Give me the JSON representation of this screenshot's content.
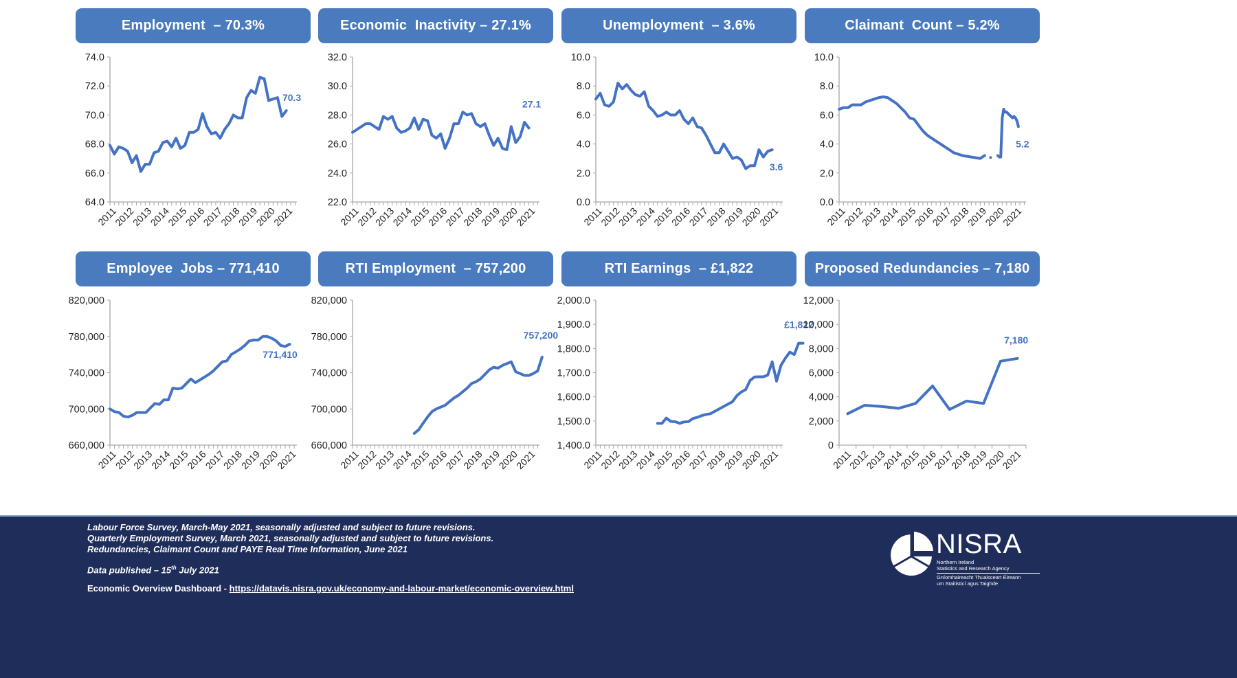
{
  "colors": {
    "header_bg": "#4a7bbf",
    "line": "#4472c4",
    "footer_bg": "#1f2d5a",
    "axis": "#a6a6a6"
  },
  "panels": [
    {
      "title": "Employment  – 70.3%"
    },
    {
      "title": "Economic  Inactivity – 27.1%"
    },
    {
      "title": "Unemployment  – 3.6%"
    },
    {
      "title": "Claimant  Count – 5.2%"
    },
    {
      "title": "Employee  Jobs – 771,410"
    },
    {
      "title": "RTI Employment  – 757,200"
    },
    {
      "title": "RTI Earnings  – £1,822"
    },
    {
      "title": "Proposed Redundancies – 7,180"
    }
  ],
  "chart_data": [
    {
      "type": "line",
      "title": "Employment – 70.3%",
      "unit": "%",
      "ylim": [
        64,
        74
      ],
      "yticks": [
        "64.0",
        "66.0",
        "68.0",
        "70.0",
        "72.0",
        "74.0"
      ],
      "ytick_values": [
        64,
        66,
        68,
        70,
        72,
        74
      ],
      "xticks": [
        "2011",
        "2012",
        "2013",
        "2014",
        "2015",
        "2016",
        "2017",
        "2018",
        "2019",
        "2020",
        "2021"
      ],
      "x_range": [
        2011.0,
        2021.6
      ],
      "end_label": "70.3",
      "series": [
        {
          "name": "Employment rate",
          "x_start": 2011.0,
          "x_step": 0.25,
          "values": [
            67.9,
            67.3,
            67.8,
            67.7,
            67.5,
            66.7,
            67.2,
            66.1,
            66.6,
            66.6,
            67.4,
            67.5,
            68.1,
            68.2,
            67.8,
            68.4,
            67.7,
            67.9,
            68.8,
            68.8,
            69.0,
            70.1,
            69.2,
            68.7,
            68.8,
            68.4,
            69.0,
            69.4,
            70.0,
            69.8,
            69.8,
            71.2,
            71.7,
            71.5,
            72.6,
            72.5,
            71.0,
            71.1,
            71.2,
            69.9,
            70.3
          ]
        }
      ]
    },
    {
      "type": "line",
      "title": "Economic Inactivity – 27.1%",
      "unit": "%",
      "ylim": [
        22,
        32
      ],
      "yticks": [
        "22.0",
        "24.0",
        "26.0",
        "28.0",
        "30.0",
        "32.0"
      ],
      "ytick_values": [
        22,
        24,
        26,
        28,
        30,
        32
      ],
      "xticks": [
        "2011",
        "2012",
        "2013",
        "2014",
        "2015",
        "2016",
        "2017",
        "2018",
        "2019",
        "2020",
        "2021"
      ],
      "x_range": [
        2011.0,
        2021.6
      ],
      "end_label": "27.1",
      "series": [
        {
          "name": "Economic inactivity rate",
          "x_start": 2011.0,
          "x_step": 0.25,
          "values": [
            26.8,
            27.0,
            27.2,
            27.4,
            27.4,
            27.2,
            27.0,
            27.9,
            27.7,
            27.9,
            27.1,
            26.8,
            26.9,
            27.1,
            27.8,
            27.0,
            27.7,
            27.6,
            26.6,
            26.4,
            26.7,
            25.7,
            26.4,
            27.4,
            27.4,
            28.2,
            28.0,
            28.1,
            27.4,
            27.2,
            27.4,
            26.6,
            25.9,
            26.4,
            25.7,
            25.6,
            27.2,
            26.1,
            26.5,
            27.5,
            27.1
          ]
        }
      ]
    },
    {
      "type": "line",
      "title": "Unemployment – 3.6%",
      "unit": "%",
      "ylim": [
        0,
        10
      ],
      "yticks": [
        "0.0",
        "2.0",
        "4.0",
        "6.0",
        "8.0",
        "10.0"
      ],
      "ytick_values": [
        0,
        2,
        4,
        6,
        8,
        10
      ],
      "xticks": [
        "2011",
        "2012",
        "2013",
        "2014",
        "2015",
        "2016",
        "2017",
        "2018",
        "2019",
        "2020",
        "2021"
      ],
      "x_range": [
        2011.0,
        2021.6
      ],
      "end_label": "3.6",
      "series": [
        {
          "name": "Unemployment rate",
          "x_start": 2011.0,
          "x_step": 0.25,
          "values": [
            7.1,
            7.5,
            6.7,
            6.6,
            6.9,
            8.2,
            7.8,
            8.1,
            7.7,
            7.4,
            7.3,
            7.6,
            6.6,
            6.3,
            5.9,
            6.0,
            6.2,
            6.0,
            6.0,
            6.3,
            5.7,
            5.4,
            5.8,
            5.2,
            5.1,
            4.6,
            4.0,
            3.4,
            3.4,
            4.0,
            3.5,
            3.0,
            3.1,
            2.9,
            2.3,
            2.5,
            2.5,
            3.6,
            3.1,
            3.5,
            3.6
          ]
        }
      ]
    },
    {
      "type": "line",
      "title": "Claimant Count – 5.2%",
      "unit": "%",
      "ylim": [
        0,
        10
      ],
      "yticks": [
        "0.0",
        "2.0",
        "4.0",
        "6.0",
        "8.0",
        "10.0"
      ],
      "ytick_values": [
        0,
        2,
        4,
        6,
        8,
        10
      ],
      "xticks": [
        "2011",
        "2012",
        "2013",
        "2014",
        "2015",
        "2016",
        "2017",
        "2018",
        "2019",
        "2020",
        "2021"
      ],
      "x_range": [
        2011.0,
        2021.6
      ],
      "end_label": "5.2",
      "series": [
        {
          "name": "Claimant count rate",
          "style": "solid",
          "x_start": 2011.0,
          "x_step": 0.25,
          "values": [
            6.4,
            6.5,
            6.5,
            6.7,
            6.7,
            6.7,
            6.9,
            7.0,
            7.1,
            7.2,
            7.25,
            7.2,
            7.0,
            6.8,
            6.5,
            6.2,
            5.8,
            5.7,
            5.3,
            4.9,
            4.6,
            4.4,
            4.2,
            4.0,
            3.8,
            3.6,
            3.4,
            3.3,
            3.2,
            3.15,
            3.1,
            3.05,
            3.0,
            3.2
          ]
        },
        {
          "name": "Claimant count rate (gap)",
          "style": "dotted",
          "x_start": 2019.25,
          "x_step": 0.25,
          "values": [
            3.2,
            3.1,
            3.0
          ]
        },
        {
          "name": "Claimant count rate (2020-21)",
          "style": "solid",
          "x_start": 2020.0,
          "x_step": 0.0833,
          "values": [
            3.2,
            3.1,
            3.1,
            5.8,
            6.4,
            6.2,
            6.2,
            6.1,
            6.0,
            5.9,
            5.8,
            5.9,
            5.8,
            5.6,
            5.2
          ]
        }
      ]
    },
    {
      "type": "line",
      "title": "Employee Jobs – 771,410",
      "unit": "jobs",
      "ylim": [
        660000,
        820000
      ],
      "yticks": [
        "660,000",
        "700,000",
        "740,000",
        "780,000",
        "820,000"
      ],
      "ytick_values": [
        660000,
        700000,
        740000,
        780000,
        820000
      ],
      "xticks": [
        "2011",
        "2012",
        "2013",
        "2014",
        "2015",
        "2016",
        "2017",
        "2018",
        "2019",
        "2020",
        "2021"
      ],
      "x_range": [
        2011.0,
        2021.4
      ],
      "end_label": "771,410",
      "series": [
        {
          "name": "Employee jobs",
          "x_start": 2011.0,
          "x_step": 0.25,
          "values": [
            700000,
            697000,
            696000,
            692000,
            691000,
            693000,
            696000,
            696000,
            696000,
            701000,
            706000,
            705000,
            710000,
            710000,
            723000,
            722000,
            723000,
            728000,
            733000,
            729000,
            732000,
            735000,
            738000,
            742000,
            747000,
            752000,
            753000,
            760000,
            763000,
            766000,
            770000,
            775000,
            776000,
            776000,
            780000,
            780000,
            778000,
            775000,
            770000,
            769000,
            771410
          ]
        }
      ]
    },
    {
      "type": "line",
      "title": "RTI Employment – 757,200",
      "unit": "employees",
      "ylim": [
        660000,
        820000
      ],
      "yticks": [
        "660,000",
        "700,000",
        "740,000",
        "780,000",
        "820,000"
      ],
      "ytick_values": [
        660000,
        700000,
        740000,
        780000,
        820000
      ],
      "xticks": [
        "2011",
        "2012",
        "2013",
        "2014",
        "2015",
        "2016",
        "2017",
        "2018",
        "2019",
        "2020",
        "2021"
      ],
      "x_range": [
        2011.0,
        2021.6
      ],
      "end_label": "757,200",
      "series": [
        {
          "name": "RTI payrolled employees",
          "x_start": 2014.5,
          "x_step": 0.25,
          "values": [
            673000,
            677000,
            684000,
            691000,
            697000,
            700000,
            702000,
            704000,
            708000,
            712000,
            715000,
            719000,
            723000,
            728000,
            730000,
            733000,
            738000,
            743000,
            746000,
            745000,
            748000,
            750000,
            752000,
            741000,
            739000,
            737000,
            737000,
            739000,
            742000,
            757200
          ]
        }
      ]
    },
    {
      "type": "line",
      "title": "RTI Earnings – £1,822",
      "unit": "£ median monthly pay",
      "ylim": [
        1400,
        2000
      ],
      "yticks": [
        "1,400.0",
        "1,500.0",
        "1,600.0",
        "1,700.0",
        "1,800.0",
        "2,000.0",
        "1,900.0"
      ],
      "ytick_values": [
        1400,
        1500,
        1600,
        1700,
        1800,
        2000,
        1900
      ],
      "xticks": [
        "2011",
        "2012",
        "2013",
        "2014",
        "2015",
        "2016",
        "2017",
        "2018",
        "2019",
        "2020",
        "2021"
      ],
      "x_range": [
        2011.0,
        2021.6
      ],
      "end_label": "£1,822",
      "series": [
        {
          "name": "RTI median monthly earnings",
          "x_start": 2014.5,
          "x_step": 0.25,
          "values": [
            1490,
            1490,
            1512,
            1498,
            1497,
            1490,
            1496,
            1497,
            1510,
            1515,
            1522,
            1527,
            1530,
            1540,
            1550,
            1560,
            1570,
            1580,
            1605,
            1620,
            1630,
            1668,
            1682,
            1683,
            1683,
            1690,
            1745,
            1665,
            1730,
            1760,
            1785,
            1775,
            1822,
            1822
          ]
        }
      ]
    },
    {
      "type": "line",
      "title": "Proposed Redundancies – 7,180",
      "unit": "redundancies",
      "ylim": [
        0,
        12000
      ],
      "yticks": [
        "0",
        "2,000",
        "4,000",
        "6,000",
        "8,000",
        "10,000",
        "12,000"
      ],
      "ytick_values": [
        0,
        2000,
        4000,
        6000,
        8000,
        10000,
        12000
      ],
      "xticks": [
        "2011",
        "2012",
        "2013",
        "2014",
        "2015",
        "2016",
        "2017",
        "2018",
        "2019",
        "2020",
        "2021"
      ],
      "x_range": [
        2011.0,
        2022.0
      ],
      "annual": true,
      "end_label": "7,180",
      "series": [
        {
          "name": "Proposed redundancies",
          "x_start": 2011.5,
          "x_step": 1,
          "values": [
            2600,
            3300,
            3200,
            3050,
            3450,
            4900,
            2950,
            3650,
            3450,
            6950,
            7180
          ]
        }
      ]
    }
  ],
  "footer": {
    "sources": [
      "Labour Force Survey, March-May 2021, seasonally adjusted and subject to future revisions.",
      "Quarterly Employment Survey, March 2021, seasonally adjusted and subject to future revisions.",
      "Redundancies, Claimant Count and PAYE Real Time Information, June 2021"
    ],
    "published_prefix": "Data published – 15",
    "published_sup": "th",
    "published_suffix": " July 2021",
    "dashboard_label": "Economic Overview Dashboard - ",
    "dashboard_link": "https://datavis.nisra.gov.uk/economy-and-labour-market/economic-overview.html"
  },
  "logo": {
    "wordmark": "NISRA",
    "line1": "Northern Ireland",
    "line2": "Statistics and Research Agency",
    "line3": "Gníomhaireacht Thuaisceart Éireann",
    "line4": "um Staitisticí agus Taighde"
  }
}
